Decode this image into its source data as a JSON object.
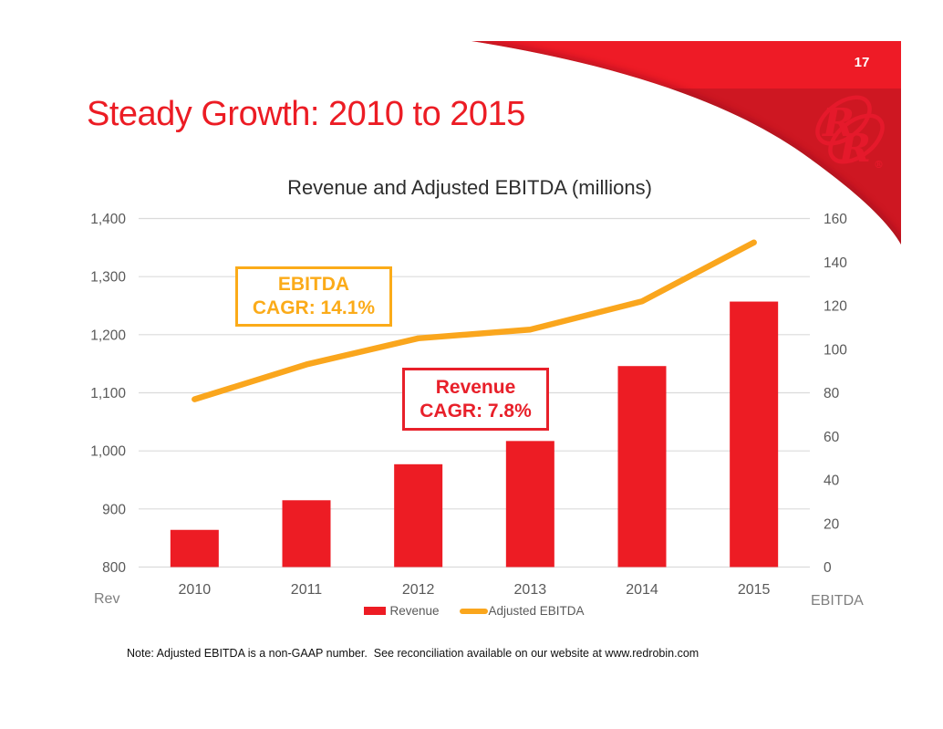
{
  "page": {
    "number": "17",
    "title": "Steady Growth: 2010 to 2015",
    "note": "Note: Adjusted EBITDA is a non-GAAP number.  See reconciliation available on our website at www.redrobin.com"
  },
  "annotations": {
    "ebitda": {
      "line1": "EBITDA",
      "line2": "CAGR: 14.1%"
    },
    "revenue": {
      "line1": "Revenue",
      "line2": "CAGR: 7.8%"
    }
  },
  "colors": {
    "red": "#ED1C24",
    "orange": "#FAA61D",
    "grid": "#DBDBDB",
    "axis_text": "#595959",
    "muted_text": "#7F7F7F",
    "swoosh_bright": "#EE1B26",
    "swoosh_dark": "#CE1722",
    "swoosh_shadow": "#8C0F1D",
    "logo": "#E5192B"
  },
  "chart_data": {
    "type": "combo",
    "title": "Revenue and Adjusted EBITDA (millions)",
    "categories": [
      "2010",
      "2011",
      "2012",
      "2013",
      "2014",
      "2015"
    ],
    "series": [
      {
        "name": "Revenue",
        "type": "bar",
        "axis": "left",
        "color": "#ED1C24",
        "values": [
          864,
          915,
          977,
          1017,
          1146,
          1257
        ]
      },
      {
        "name": "Adjusted EBITDA",
        "type": "line",
        "axis": "right",
        "color": "#FAA61D",
        "values": [
          77,
          93,
          105,
          109,
          122,
          149
        ]
      }
    ],
    "left_axis": {
      "label": "Rev",
      "min": 800,
      "max": 1400,
      "step": 100,
      "ticks": [
        "800",
        "900",
        "1,000",
        "1,100",
        "1,200",
        "1,300",
        "1,400"
      ]
    },
    "right_axis": {
      "label": "EBITDA",
      "min": 0,
      "max": 160,
      "step": 20,
      "ticks": [
        "0",
        "20",
        "40",
        "60",
        "80",
        "100",
        "120",
        "140",
        "160"
      ]
    },
    "grid": true,
    "legend_position": "bottom"
  }
}
